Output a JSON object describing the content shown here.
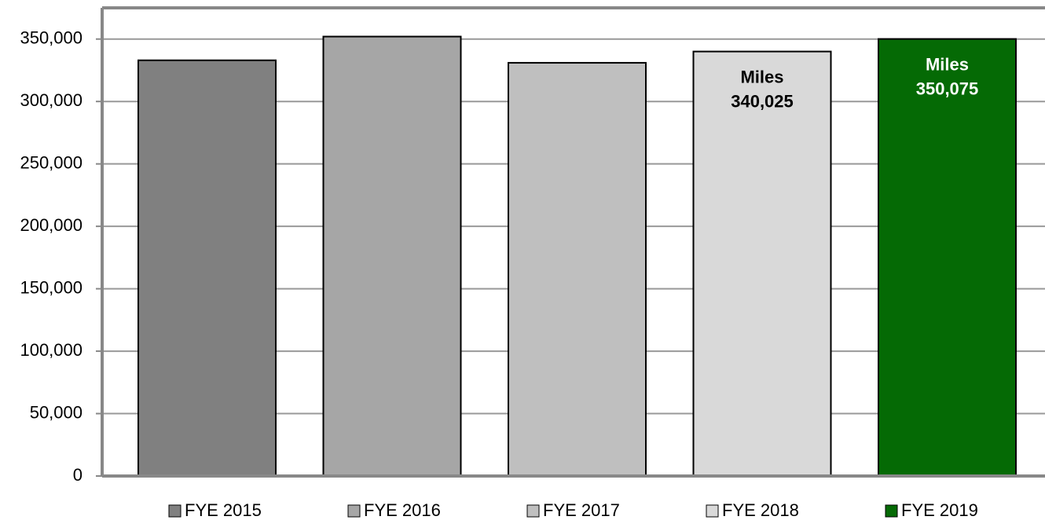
{
  "chart_data": {
    "type": "bar",
    "categories": [
      null
    ],
    "series": [
      {
        "name": "FYE 2015",
        "color": "#808080",
        "values": [
          333000
        ]
      },
      {
        "name": "FYE 2016",
        "color": "#a6a6a6",
        "values": [
          352000
        ]
      },
      {
        "name": "FYE 2017",
        "color": "#bfbfbf",
        "values": [
          331000
        ]
      },
      {
        "name": "FYE 2018",
        "color": "#d9d9d9",
        "values": [
          340025
        ],
        "label_title": "Miles",
        "value_labels": [
          "340,025"
        ],
        "label_color": "#000000"
      },
      {
        "name": "FYE 2019",
        "color": "#056a05",
        "values": [
          350075
        ],
        "label_title": "Miles",
        "value_labels": [
          "350,075"
        ],
        "label_color": "#ffffff"
      }
    ],
    "ylim": [
      0,
      375000
    ],
    "yticks": [
      0,
      {
        "value": 50000,
        "label": "50,000"
      },
      {
        "value": 100000,
        "label": "100,000"
      },
      {
        "value": 150000,
        "label": "150,000"
      },
      {
        "value": 200000,
        "label": "200,000"
      },
      {
        "value": 250000,
        "label": "250,000"
      },
      {
        "value": 300000,
        "label": "300,000"
      },
      {
        "value": 350000,
        "label": "350,000"
      }
    ],
    "grid": true,
    "legend": "bottom"
  }
}
